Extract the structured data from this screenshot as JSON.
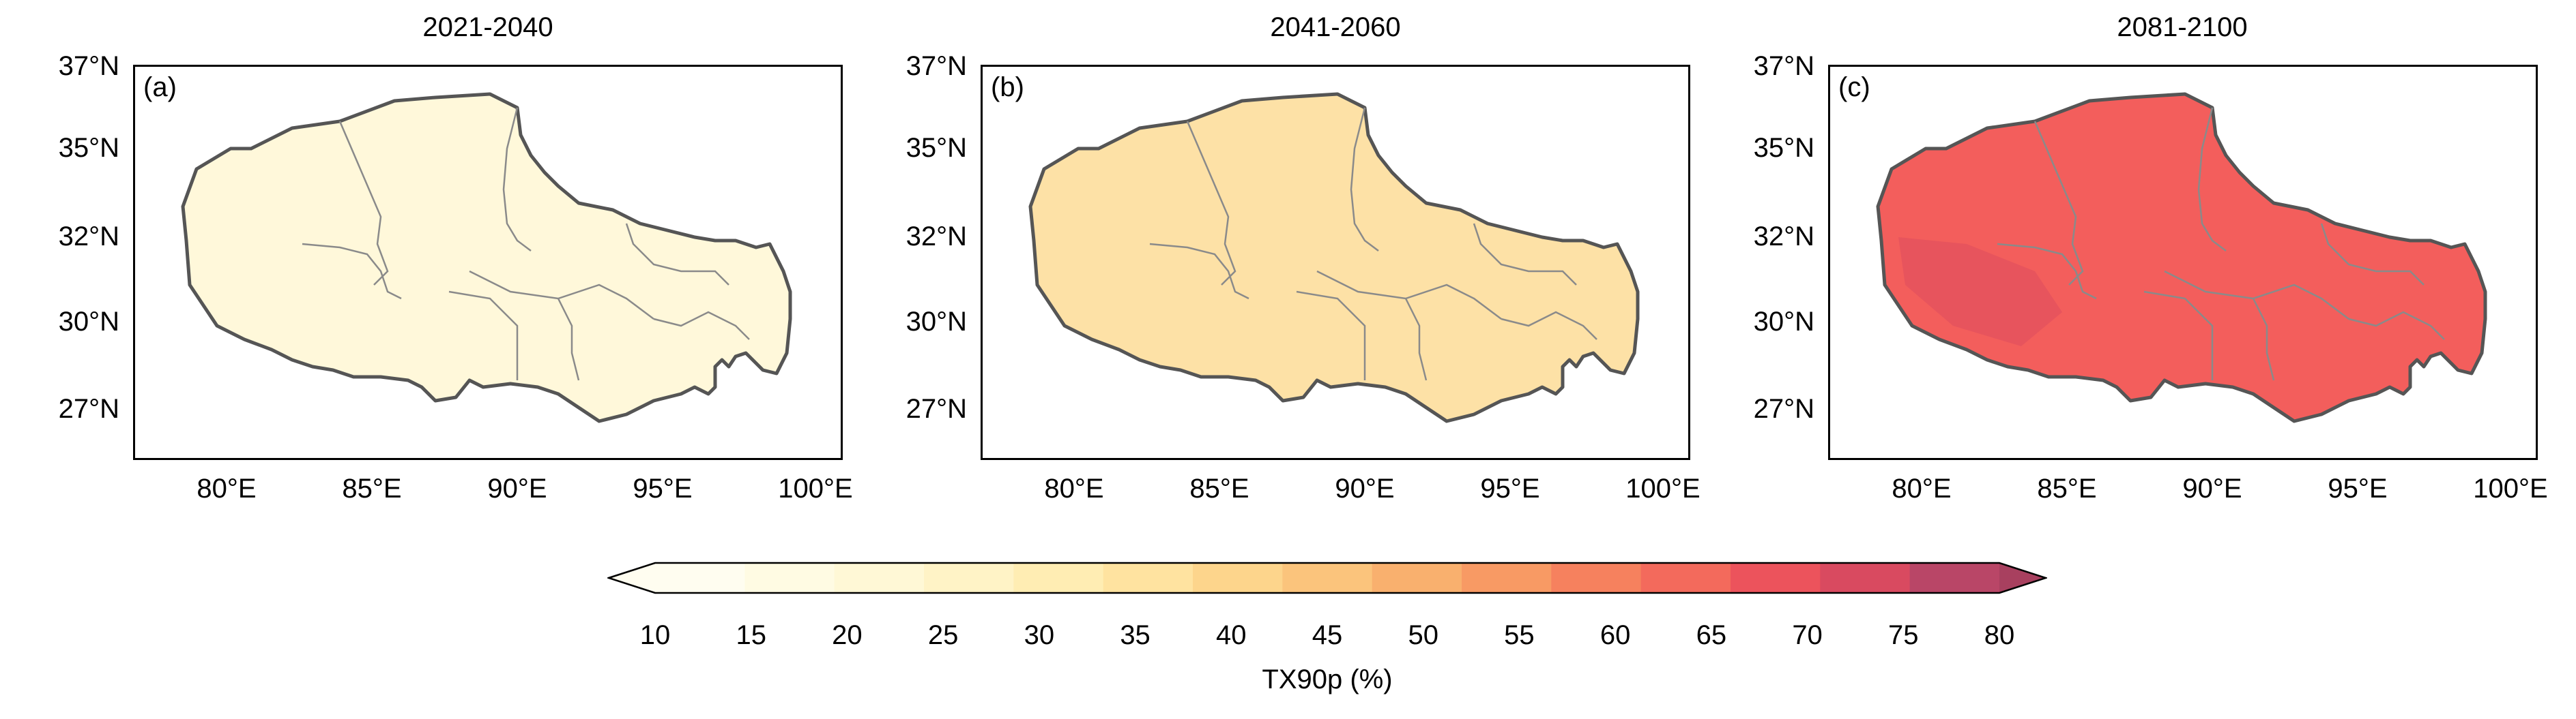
{
  "panels": [
    {
      "title": "2021-2040",
      "label": "(a)"
    },
    {
      "title": "2041-2060",
      "label": "(b)"
    },
    {
      "title": "2081-2100",
      "label": "(c)"
    }
  ],
  "y_ticks": [
    "37°N",
    "35°N",
    "32°N",
    "30°N",
    "27°N"
  ],
  "x_ticks": [
    "80°E",
    "85°E",
    "90°E",
    "95°E",
    "100°E"
  ],
  "colorbar": {
    "ticks": [
      "10",
      "15",
      "20",
      "25",
      "30",
      "35",
      "40",
      "45",
      "50",
      "55",
      "60",
      "65",
      "70",
      "75",
      "80"
    ],
    "label": "TX90p (%)",
    "colors": [
      "#fffdf0",
      "#fffbe3",
      "#fff8d6",
      "#fff3c6",
      "#ffedb3",
      "#ffe3a0",
      "#fdd58c",
      "#fbc47c",
      "#f9b06e",
      "#f89a64",
      "#f6815e",
      "#f36a5c",
      "#ec535c",
      "#d94a60",
      "#b94667"
    ]
  },
  "map_fill_colors": [
    "#fff8da",
    "#fde1a6",
    "#f35e5c"
  ]
}
